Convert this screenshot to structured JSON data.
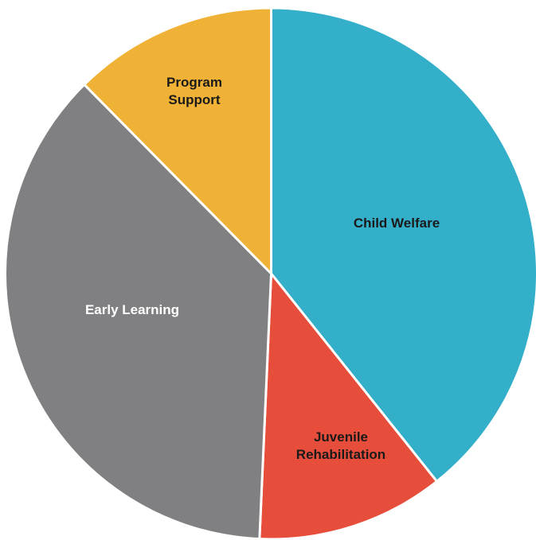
{
  "chart_data": {
    "type": "pie",
    "title": "",
    "start_angle_deg": 0,
    "direction": "clockwise",
    "slices": [
      {
        "label": [
          "Child Welfare"
        ],
        "value": 39.3,
        "color": "#33afc9",
        "label_color": "#1a1a1a"
      },
      {
        "label": [
          "Juvenile",
          "Rehabilitation"
        ],
        "value": 11.4,
        "color": "#e64d3a",
        "label_color": "#1a1a1a"
      },
      {
        "label": [
          "Early Learning"
        ],
        "value": 36.9,
        "color": "#808083",
        "label_color": "#ffffff"
      },
      {
        "label": [
          "Program",
          "Support"
        ],
        "value": 12.4,
        "color": "#f0b236",
        "label_color": "#1a1a1a"
      }
    ]
  }
}
